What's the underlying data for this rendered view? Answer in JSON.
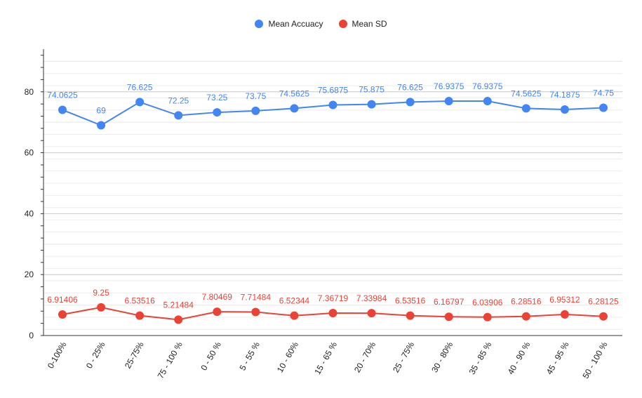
{
  "chart_data": {
    "type": "line",
    "title": "",
    "xlabel": "",
    "ylabel": "",
    "ylim": [
      0,
      94
    ],
    "yticks": [
      "0",
      "20",
      "40",
      "60",
      "80"
    ],
    "grid": true,
    "legend_position": "top-center",
    "categories": [
      "0-100%",
      "0 - 25%",
      "25-75%",
      "75 - 100 %",
      "0 - 50 %",
      "5 - 55 %",
      "10 - 60%",
      "15 - 65 %",
      "20 - 70%",
      "25 - 75%",
      "30 - 80%",
      "35 - 85 %",
      "40 - 90 %",
      "45 - 95 %",
      "50 - 100 %"
    ],
    "series": [
      {
        "name": "Mean Accuacy",
        "color": "#4285f4",
        "values": [
          74.0625,
          69,
          76.625,
          72.25,
          73.25,
          73.75,
          74.5625,
          75.6875,
          75.875,
          76.625,
          76.9375,
          76.9375,
          74.5625,
          74.1875,
          74.75
        ],
        "labels": [
          "74.0625",
          "69",
          "76.625",
          "72.25",
          "73.25",
          "73.75",
          "74.5625",
          "75.6875",
          "75.875",
          "76.625",
          "76.9375",
          "76.9375",
          "74.5625",
          "74.1875",
          "74.75"
        ]
      },
      {
        "name": "Mean SD",
        "color": "#ea4335",
        "values": [
          6.91406,
          9.25,
          6.53516,
          5.21484,
          7.80469,
          7.71484,
          6.52344,
          7.36719,
          7.33984,
          6.53516,
          6.16797,
          6.03906,
          6.28516,
          6.95312,
          6.28125
        ],
        "labels": [
          "6.91406",
          "9.25",
          "6.53516",
          "5.21484",
          "7.80469",
          "7.71484",
          "6.52344",
          "7.36719",
          "7.33984",
          "6.53516",
          "6.16797",
          "6.03906",
          "6.28516",
          "6.95312",
          "6.28125"
        ]
      }
    ]
  }
}
